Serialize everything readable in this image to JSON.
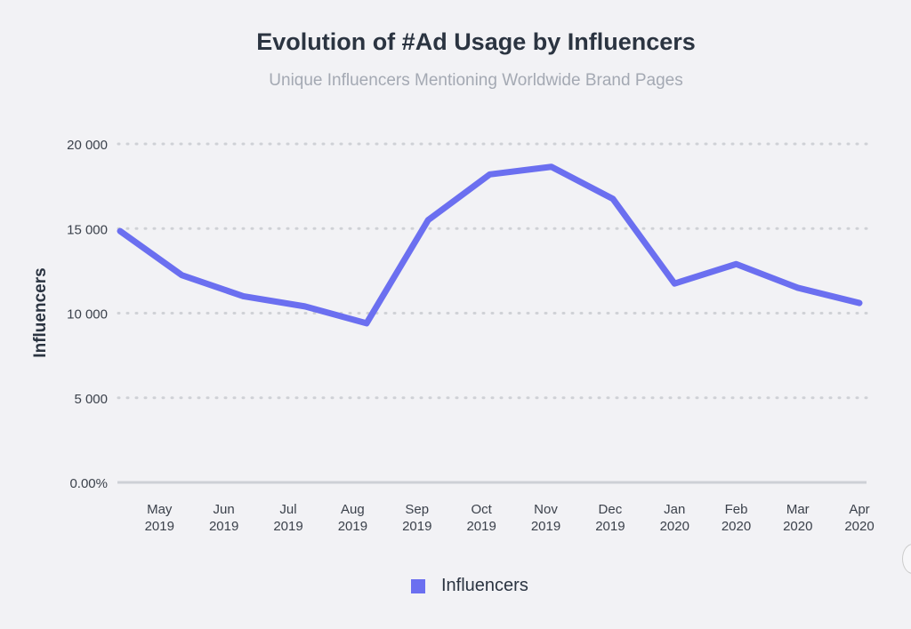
{
  "chart_data": {
    "type": "line",
    "title": "Evolution of #Ad Usage by Influencers",
    "subtitle": "Unique Influencers Mentioning Worldwide Brand Pages",
    "xlabel": "",
    "ylabel": "Influencers",
    "ylim": [
      0,
      20000
    ],
    "y_ticks": [
      {
        "value": 0,
        "label": "0.00%"
      },
      {
        "value": 5000,
        "label": "5 000"
      },
      {
        "value": 10000,
        "label": "10 000"
      },
      {
        "value": 15000,
        "label": "15 000"
      },
      {
        "value": 20000,
        "label": "20 000"
      }
    ],
    "categories": [
      {
        "month": "",
        "year": ""
      },
      {
        "month": "May",
        "year": "2019"
      },
      {
        "month": "Jun",
        "year": "2019"
      },
      {
        "month": "Jul",
        "year": "2019"
      },
      {
        "month": "Aug",
        "year": "2019"
      },
      {
        "month": "Sep",
        "year": "2019"
      },
      {
        "month": "Oct",
        "year": "2019"
      },
      {
        "month": "Nov",
        "year": "2019"
      },
      {
        "month": "Dec",
        "year": "2019"
      },
      {
        "month": "Jan",
        "year": "2020"
      },
      {
        "month": "Feb",
        "year": "2020"
      },
      {
        "month": "Mar",
        "year": "2020"
      },
      {
        "month": "Apr",
        "year": "2020"
      }
    ],
    "series": [
      {
        "name": "Influencers",
        "color": "#6b6ff0",
        "values": [
          14850,
          12250,
          11000,
          10400,
          9400,
          15500,
          18200,
          18650,
          16750,
          11750,
          12900,
          11500,
          10600
        ]
      }
    ],
    "grid": true,
    "legend": "bottom-center"
  }
}
